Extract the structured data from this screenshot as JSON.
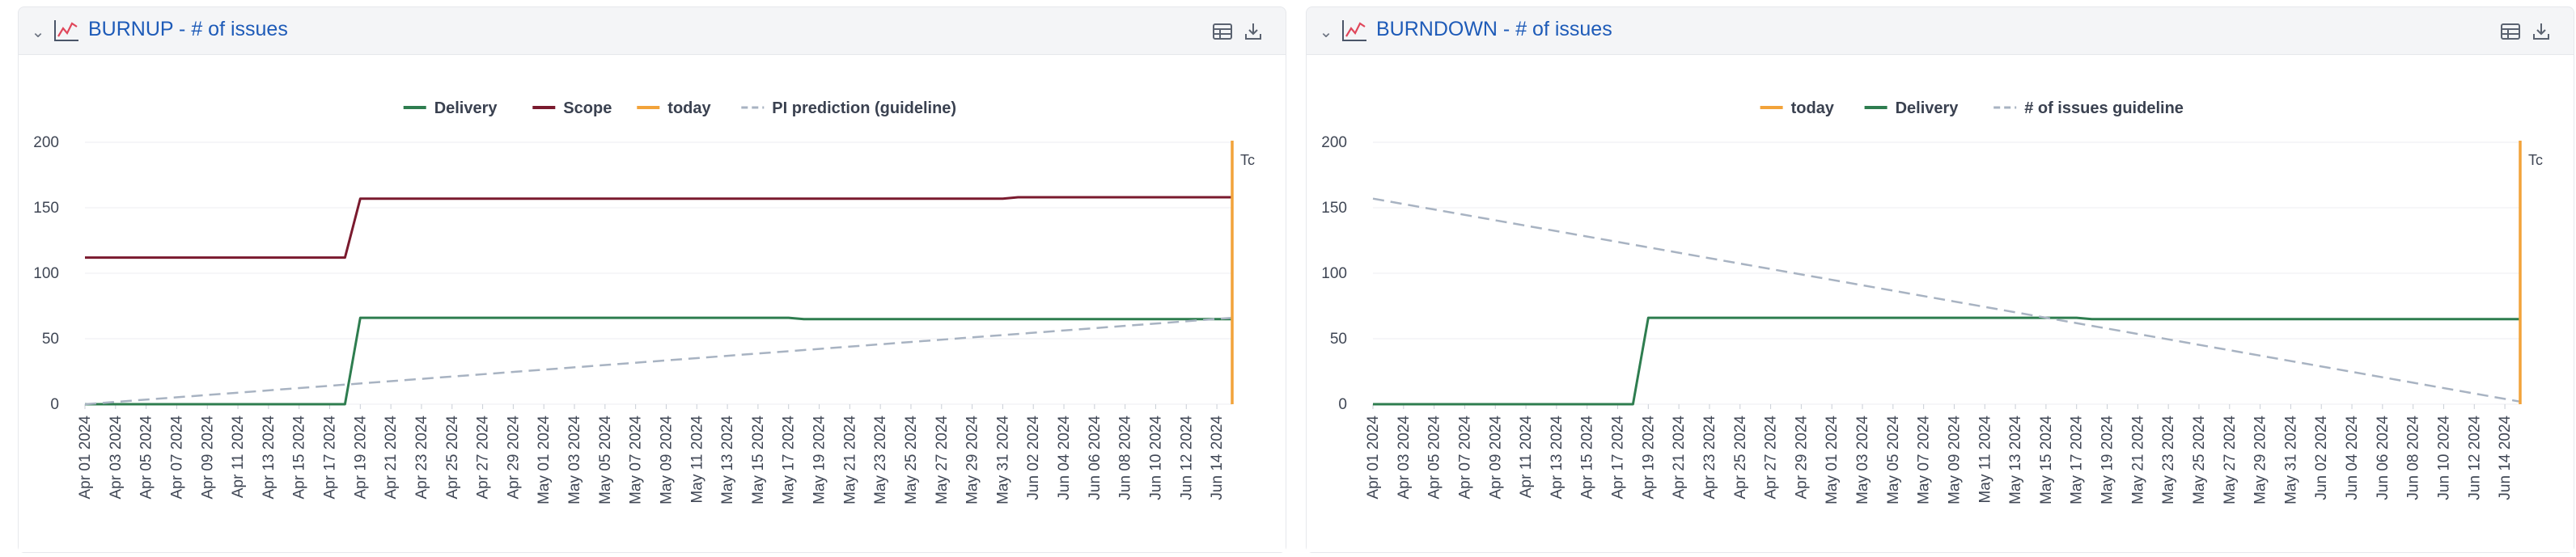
{
  "panels": [
    {
      "id": "burnup",
      "title": "BURNUP - # of issues",
      "icons": [
        "collapse-chevron-icon",
        "line-chart-icon",
        "table-view-icon",
        "download-icon"
      ],
      "chart_data": {
        "type": "line",
        "title": "BURNUP - # of issues",
        "xlabel": "",
        "ylabel": "",
        "ylim": [
          0,
          200
        ],
        "yticks": [
          0,
          50,
          100,
          150,
          200
        ],
        "grid": true,
        "legend_position": "top",
        "legend": [
          "Delivery",
          "Scope",
          "today",
          "PI prediction (guideline)"
        ],
        "x_tick_labels": [
          "Apr 01 2024",
          "Apr 03 2024",
          "Apr 05 2024",
          "Apr 07 2024",
          "Apr 09 2024",
          "Apr 11 2024",
          "Apr 13 2024",
          "Apr 15 2024",
          "Apr 17 2024",
          "Apr 19 2024",
          "Apr 21 2024",
          "Apr 23 2024",
          "Apr 25 2024",
          "Apr 27 2024",
          "Apr 29 2024",
          "May 01 2024",
          "May 03 2024",
          "May 05 2024",
          "May 07 2024",
          "May 09 2024",
          "May 11 2024",
          "May 13 2024",
          "May 15 2024",
          "May 17 2024",
          "May 19 2024",
          "May 21 2024",
          "May 23 2024",
          "May 25 2024",
          "May 27 2024",
          "May 29 2024",
          "May 31 2024",
          "Jun 02 2024",
          "Jun 04 2024",
          "Jun 06 2024",
          "Jun 08 2024",
          "Jun 10 2024",
          "Jun 12 2024",
          "Jun 14 2024"
        ],
        "x_start": "Apr 01 2024",
        "x_end": "Jun 15 2024",
        "series": [
          {
            "name": "Delivery",
            "color": "#2e7d4f",
            "dash": false,
            "points": [
              [
                "Apr 01 2024",
                0
              ],
              [
                "Apr 18 2024",
                0
              ],
              [
                "Apr 19 2024",
                66
              ],
              [
                "May 17 2024",
                66
              ],
              [
                "May 18 2024",
                65
              ],
              [
                "Jun 15 2024",
                65
              ]
            ]
          },
          {
            "name": "Scope",
            "color": "#7a1a2e",
            "dash": false,
            "points": [
              [
                "Apr 01 2024",
                112
              ],
              [
                "Apr 18 2024",
                112
              ],
              [
                "Apr 19 2024",
                157
              ],
              [
                "May 31 2024",
                157
              ],
              [
                "Jun 01 2024",
                158
              ],
              [
                "Jun 15 2024",
                158
              ]
            ]
          },
          {
            "name": "PI prediction (guideline)",
            "color": "#a8b3c2",
            "dash": true,
            "points": [
              [
                "Apr 01 2024",
                0
              ],
              [
                "Jun 15 2024",
                66
              ]
            ]
          }
        ],
        "today": {
          "name": "today",
          "date": "Jun 15 2024",
          "color": "#f2a33a",
          "label": "Tc"
        }
      }
    },
    {
      "id": "burndown",
      "title": "BURNDOWN - # of issues",
      "icons": [
        "collapse-chevron-icon",
        "line-chart-icon",
        "table-view-icon",
        "download-icon"
      ],
      "chart_data": {
        "type": "line",
        "title": "BURNDOWN - # of issues",
        "xlabel": "",
        "ylabel": "",
        "ylim": [
          0,
          200
        ],
        "yticks": [
          0,
          50,
          100,
          150,
          200
        ],
        "grid": true,
        "legend_position": "top",
        "legend": [
          "today",
          "Delivery",
          "# of issues guideline"
        ],
        "x_tick_labels": [
          "Apr 01 2024",
          "Apr 03 2024",
          "Apr 05 2024",
          "Apr 07 2024",
          "Apr 09 2024",
          "Apr 11 2024",
          "Apr 13 2024",
          "Apr 15 2024",
          "Apr 17 2024",
          "Apr 19 2024",
          "Apr 21 2024",
          "Apr 23 2024",
          "Apr 25 2024",
          "Apr 27 2024",
          "Apr 29 2024",
          "May 01 2024",
          "May 03 2024",
          "May 05 2024",
          "May 07 2024",
          "May 09 2024",
          "May 11 2024",
          "May 13 2024",
          "May 15 2024",
          "May 17 2024",
          "May 19 2024",
          "May 21 2024",
          "May 23 2024",
          "May 25 2024",
          "May 27 2024",
          "May 29 2024",
          "May 31 2024",
          "Jun 02 2024",
          "Jun 04 2024",
          "Jun 06 2024",
          "Jun 08 2024",
          "Jun 10 2024",
          "Jun 12 2024",
          "Jun 14 2024"
        ],
        "x_start": "Apr 01 2024",
        "x_end": "Jun 15 2024",
        "series": [
          {
            "name": "Delivery",
            "color": "#2e7d4f",
            "dash": false,
            "points": [
              [
                "Apr 01 2024",
                0
              ],
              [
                "Apr 18 2024",
                0
              ],
              [
                "Apr 19 2024",
                66
              ],
              [
                "May 17 2024",
                66
              ],
              [
                "May 18 2024",
                65
              ],
              [
                "Jun 15 2024",
                65
              ]
            ]
          },
          {
            "name": "# of issues guideline",
            "color": "#a8b3c2",
            "dash": true,
            "points": [
              [
                "Apr 01 2024",
                157
              ],
              [
                "Jun 15 2024",
                2
              ]
            ]
          }
        ],
        "today": {
          "name": "today",
          "date": "Jun 15 2024",
          "color": "#f2a33a",
          "label": "Tc"
        }
      }
    }
  ]
}
